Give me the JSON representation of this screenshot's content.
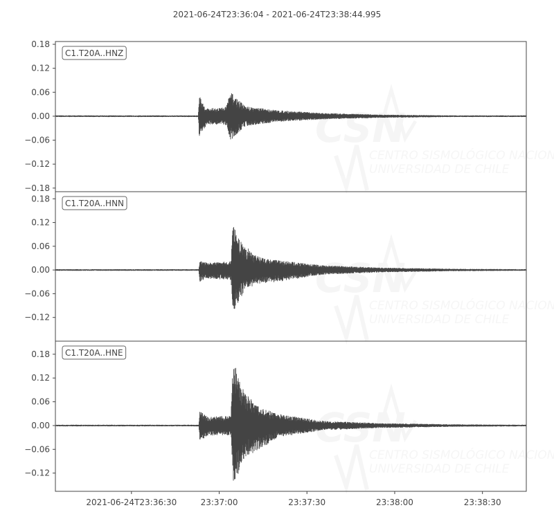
{
  "chart_data": {
    "type": "line",
    "title": "2021-06-24T23:36:04  -  2021-06-24T23:38:44.995",
    "start": "23:36:04",
    "end": "23:38:44.995",
    "x_ticks": [
      {
        "time": "23:36:30",
        "label": "2021-06-24T23:36:30"
      },
      {
        "time": "23:37:00",
        "label": "23:37:00"
      },
      {
        "time": "23:37:30",
        "label": "23:37:30"
      },
      {
        "time": "23:38:00",
        "label": "23:38:00"
      },
      {
        "time": "23:38:30",
        "label": "23:38:30"
      }
    ],
    "line_color": "#444444",
    "grid": false,
    "watermark": [
      "CSN",
      "CENTRO SISMOLÓGICO NACIONAL",
      "UNIVERSIDAD DE CHILE"
    ],
    "traces": [
      {
        "name": "C1.T20A..HNZ",
        "ylim": [
          -0.189,
          0.187
        ],
        "y_ticks": [
          "0.18",
          "0.12",
          "0.06",
          "0.00",
          "-0.06",
          "-0.12",
          "-0.18"
        ],
        "envelope": [
          [
            "23:36:04",
            0.002,
            0.002
          ],
          [
            "23:36:52.8",
            0.002,
            0.002
          ],
          [
            "23:36:53.2",
            0.055,
            0.06
          ],
          [
            "23:36:54.5",
            0.03,
            0.035
          ],
          [
            "23:36:56",
            0.02,
            0.02
          ],
          [
            "23:37:02",
            0.022,
            0.022
          ],
          [
            "23:37:04",
            0.06,
            0.06
          ],
          [
            "23:37:06",
            0.045,
            0.045
          ],
          [
            "23:37:09",
            0.025,
            0.025
          ],
          [
            "23:37:20",
            0.015,
            0.014
          ],
          [
            "23:37:35",
            0.008,
            0.008
          ],
          [
            "23:37:55",
            0.004,
            0.004
          ],
          [
            "23:38:20",
            0.002,
            0.002
          ],
          [
            "23:38:44.995",
            0.002,
            0.002
          ]
        ]
      },
      {
        "name": "C1.T20A..HNN",
        "ylim": [
          -0.18,
          0.198
        ],
        "y_ticks": [
          "0.18",
          "0.12",
          "0.06",
          "0.00",
          "-0.06",
          "-0.12"
        ],
        "envelope": [
          [
            "23:36:04",
            0.002,
            0.002
          ],
          [
            "23:36:53",
            0.002,
            0.002
          ],
          [
            "23:36:53.4",
            0.025,
            0.03
          ],
          [
            "23:36:56",
            0.018,
            0.022
          ],
          [
            "23:37:04",
            0.022,
            0.025
          ],
          [
            "23:37:04.7",
            0.128,
            0.105
          ],
          [
            "23:37:06",
            0.085,
            0.09
          ],
          [
            "23:37:09",
            0.06,
            0.05
          ],
          [
            "23:37:13",
            0.035,
            0.035
          ],
          [
            "23:37:20",
            0.025,
            0.03
          ],
          [
            "23:37:35",
            0.012,
            0.012
          ],
          [
            "23:37:55",
            0.006,
            0.006
          ],
          [
            "23:38:20",
            0.003,
            0.003
          ],
          [
            "23:38:44.995",
            0.002,
            0.002
          ]
        ]
      },
      {
        "name": "C1.T20A..HNE",
        "ylim": [
          -0.166,
          0.213
        ],
        "y_ticks": [
          "0.18",
          "0.12",
          "0.06",
          "0.00",
          "-0.06",
          "-0.12"
        ],
        "envelope": [
          [
            "23:36:04",
            0.002,
            0.002
          ],
          [
            "23:36:53",
            0.002,
            0.002
          ],
          [
            "23:36:53.4",
            0.038,
            0.045
          ],
          [
            "23:36:56",
            0.022,
            0.025
          ],
          [
            "23:37:04",
            0.025,
            0.025
          ],
          [
            "23:37:04.8",
            0.195,
            0.148
          ],
          [
            "23:37:06",
            0.13,
            0.13
          ],
          [
            "23:37:09",
            0.08,
            0.08
          ],
          [
            "23:37:14",
            0.045,
            0.06
          ],
          [
            "23:37:20",
            0.03,
            0.03
          ],
          [
            "23:37:35",
            0.012,
            0.012
          ],
          [
            "23:37:55",
            0.006,
            0.006
          ],
          [
            "23:38:20",
            0.003,
            0.003
          ],
          [
            "23:38:44.995",
            0.002,
            0.002
          ]
        ]
      }
    ]
  }
}
